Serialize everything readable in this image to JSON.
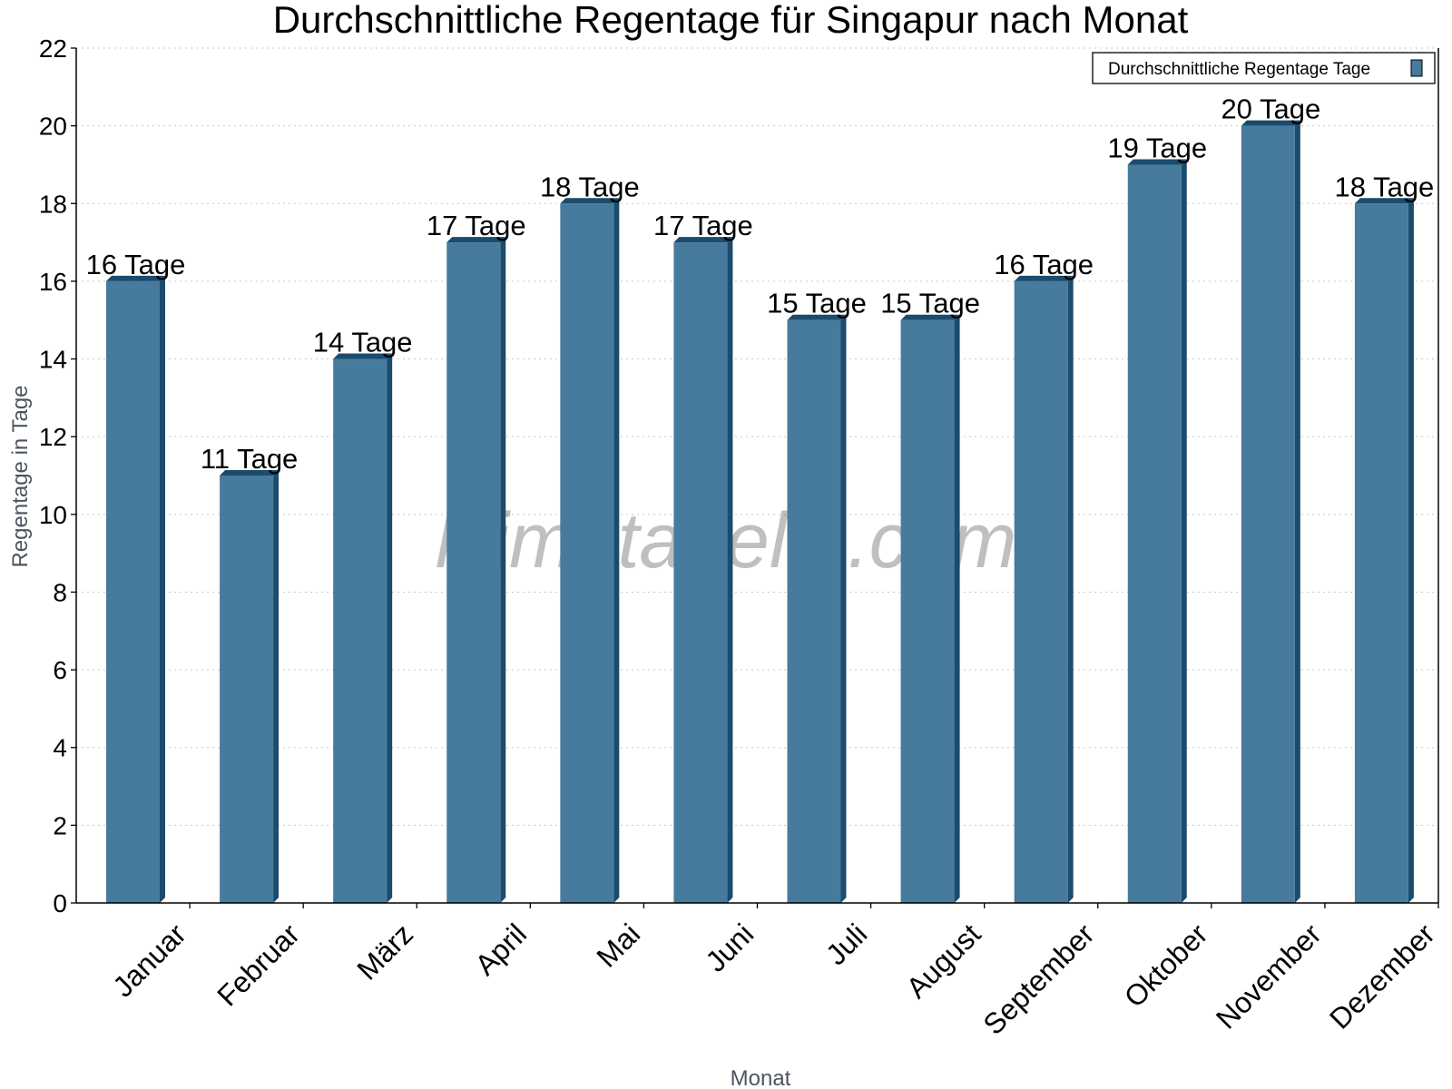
{
  "chart_data": {
    "type": "bar",
    "title": "Durchschnittliche Regentage für Singapur nach Monat",
    "xlabel": "Monat",
    "ylabel": "Regentage in Tage",
    "ylim": [
      0,
      22
    ],
    "yticks": [
      0,
      2,
      4,
      6,
      8,
      10,
      12,
      14,
      16,
      18,
      20,
      22
    ],
    "grid": true,
    "legend_position": "top-right",
    "categories": [
      "Januar",
      "Februar",
      "März",
      "April",
      "Mai",
      "Juni",
      "Juli",
      "August",
      "September",
      "Oktober",
      "November",
      "Dezember"
    ],
    "series": [
      {
        "name": "Durchschnittliche Regentage Tage",
        "values": [
          16,
          11,
          14,
          17,
          18,
          17,
          15,
          15,
          16,
          19,
          20,
          18
        ],
        "color": "#467b9d",
        "shade_color": "#1b4b6d"
      }
    ],
    "data_labels": [
      "16 Tage",
      "11 Tage",
      "14 Tage",
      "17 Tage",
      "18 Tage",
      "17 Tage",
      "15 Tage",
      "15 Tage",
      "16 Tage",
      "19 Tage",
      "20 Tage",
      "18 Tage"
    ],
    "watermark": "klimatabelle.com"
  }
}
